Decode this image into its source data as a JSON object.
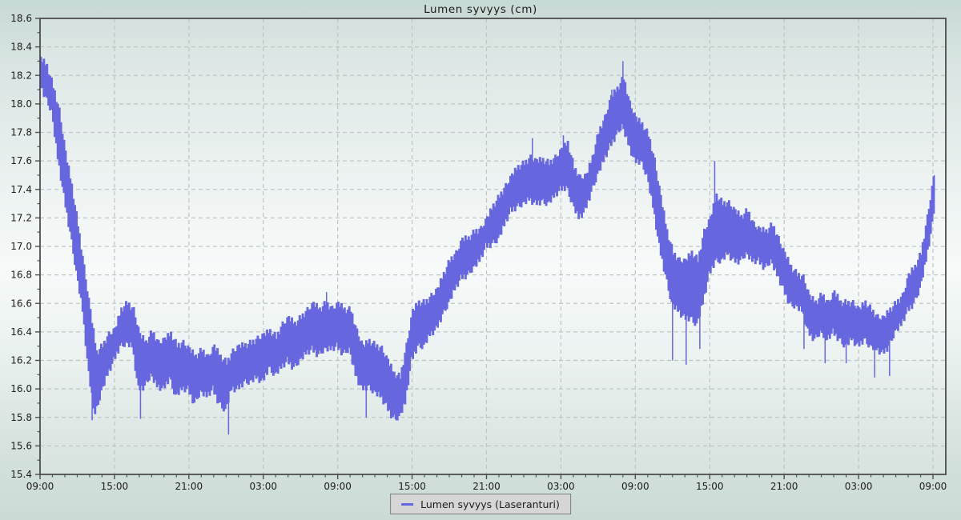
{
  "window": {
    "title": "Lumen syvyys (cm)"
  },
  "legend": {
    "label": "Lumen syvyys (Laseranturi)"
  },
  "colors": {
    "line": "#6667DF",
    "grid": "#bdc4c2",
    "axis": "#4d4d4d",
    "text": "#1b1b1b",
    "legend_bg": "#d6d6d6",
    "legend_border": "#7e7e7e",
    "bg_top": "#c7d9d5",
    "bg_mid": "#f6faf9",
    "bg_bottom": "#cadbd5"
  },
  "chart_data": {
    "type": "line",
    "title": "Lumen syvyys (cm)",
    "series": [
      {
        "name": "Lumen syvyys (Laseranturi)",
        "color": "#6667DF"
      }
    ],
    "x_axis": {
      "tick_labels": [
        "09:00",
        "15:00",
        "21:00",
        "03:00",
        "09:00",
        "15:00",
        "21:00",
        "03:00",
        "09:00",
        "15:00",
        "21:00",
        "03:00",
        "09:00"
      ],
      "tick_interval_hours": 6,
      "minor_tick_hours": 1,
      "total_hours": 72,
      "grid": true
    },
    "y_axis": {
      "min": 15.4,
      "max": 18.6,
      "tick_step": 0.2,
      "minor_tick_step": 0.1,
      "unit": "cm",
      "tick_labels": [
        "15.4",
        "15.6",
        "15.8",
        "16.0",
        "16.2",
        "16.4",
        "16.6",
        "16.8",
        "17.0",
        "17.2",
        "17.4",
        "17.6",
        "17.8",
        "18.0",
        "18.2",
        "18.4",
        "18.6"
      ],
      "grid": true
    },
    "legend_position": "bottom-center",
    "envelope_points_h_lo_hi": [
      [
        0,
        18.15,
        18.32
      ],
      [
        0.5,
        18.05,
        18.26
      ],
      [
        1,
        17.95,
        18.12
      ],
      [
        1.5,
        17.62,
        17.95
      ],
      [
        2,
        17.35,
        17.66
      ],
      [
        2.5,
        17.1,
        17.42
      ],
      [
        3,
        16.82,
        17.15
      ],
      [
        3.5,
        16.55,
        16.85
      ],
      [
        4,
        16.1,
        16.55
      ],
      [
        4.5,
        15.82,
        16.25
      ],
      [
        5,
        15.98,
        16.3
      ],
      [
        5.5,
        16.1,
        16.38
      ],
      [
        6,
        16.2,
        16.42
      ],
      [
        6.5,
        16.3,
        16.55
      ],
      [
        7,
        16.32,
        16.6
      ],
      [
        7.5,
        16.3,
        16.55
      ],
      [
        8,
        16,
        16.38
      ],
      [
        8.5,
        16.02,
        16.32
      ],
      [
        9,
        16.1,
        16.4
      ],
      [
        9.5,
        16.02,
        16.32
      ],
      [
        10,
        16,
        16.35
      ],
      [
        10.5,
        16.08,
        16.38
      ],
      [
        11,
        15.95,
        16.3
      ],
      [
        11.5,
        16,
        16.32
      ],
      [
        12,
        16,
        16.28
      ],
      [
        12.5,
        15.9,
        16.22
      ],
      [
        13,
        15.98,
        16.27
      ],
      [
        13.5,
        15.95,
        16.22
      ],
      [
        14,
        16,
        16.3
      ],
      [
        14.5,
        15.9,
        16.22
      ],
      [
        15,
        15.85,
        16.18
      ],
      [
        15.5,
        16,
        16.26
      ],
      [
        16,
        16,
        16.3
      ],
      [
        16.5,
        16.05,
        16.3
      ],
      [
        17,
        16.05,
        16.32
      ],
      [
        17.5,
        16.08,
        16.35
      ],
      [
        18,
        16.05,
        16.38
      ],
      [
        18.5,
        16.15,
        16.4
      ],
      [
        19,
        16.1,
        16.36
      ],
      [
        19.5,
        16.15,
        16.45
      ],
      [
        20,
        16.2,
        16.5
      ],
      [
        20.5,
        16.15,
        16.45
      ],
      [
        21,
        16.2,
        16.5
      ],
      [
        21.5,
        16.25,
        16.55
      ],
      [
        22,
        16.28,
        16.6
      ],
      [
        22.5,
        16.24,
        16.55
      ],
      [
        23,
        16.28,
        16.6
      ],
      [
        23.5,
        16.28,
        16.56
      ],
      [
        24,
        16.3,
        16.6
      ],
      [
        24.5,
        16.25,
        16.55
      ],
      [
        25,
        16.28,
        16.55
      ],
      [
        25.5,
        16.1,
        16.4
      ],
      [
        26,
        16,
        16.3
      ],
      [
        26.5,
        16.02,
        16.33
      ],
      [
        27,
        15.98,
        16.3
      ],
      [
        27.5,
        15.95,
        16.28
      ],
      [
        28,
        15.88,
        16.2
      ],
      [
        28.5,
        15.8,
        16.1
      ],
      [
        29,
        15.8,
        16.08
      ],
      [
        29.5,
        15.9,
        16.3
      ],
      [
        30,
        16.2,
        16.55
      ],
      [
        30.5,
        16.3,
        16.6
      ],
      [
        31,
        16.3,
        16.6
      ],
      [
        31.5,
        16.38,
        16.65
      ],
      [
        32,
        16.42,
        16.7
      ],
      [
        32.5,
        16.52,
        16.8
      ],
      [
        33,
        16.6,
        16.9
      ],
      [
        33.5,
        16.7,
        16.95
      ],
      [
        34,
        16.78,
        17.05
      ],
      [
        34.5,
        16.8,
        17.05
      ],
      [
        35,
        16.85,
        17.1
      ],
      [
        35.5,
        16.9,
        17.12
      ],
      [
        36,
        17,
        17.2
      ],
      [
        36.5,
        17.02,
        17.28
      ],
      [
        37,
        17.05,
        17.35
      ],
      [
        37.5,
        17.15,
        17.42
      ],
      [
        38,
        17.25,
        17.5
      ],
      [
        38.5,
        17.28,
        17.55
      ],
      [
        39,
        17.3,
        17.58
      ],
      [
        39.5,
        17.33,
        17.62
      ],
      [
        40,
        17.3,
        17.6
      ],
      [
        40.5,
        17.32,
        17.6
      ],
      [
        41,
        17.3,
        17.58
      ],
      [
        41.5,
        17.35,
        17.62
      ],
      [
        42,
        17.4,
        17.68
      ],
      [
        42.5,
        17.42,
        17.72
      ],
      [
        43,
        17.3,
        17.55
      ],
      [
        43.5,
        17.2,
        17.48
      ],
      [
        44,
        17.25,
        17.5
      ],
      [
        44.5,
        17.38,
        17.62
      ],
      [
        45,
        17.5,
        17.8
      ],
      [
        45.5,
        17.6,
        17.9
      ],
      [
        46,
        17.7,
        18.05
      ],
      [
        46.5,
        17.78,
        18.1
      ],
      [
        47,
        17.85,
        18.18
      ],
      [
        47.5,
        17.72,
        18
      ],
      [
        48,
        17.6,
        17.9
      ],
      [
        48.5,
        17.6,
        17.85
      ],
      [
        49,
        17.5,
        17.78
      ],
      [
        49.5,
        17.28,
        17.6
      ],
      [
        50,
        17,
        17.35
      ],
      [
        50.5,
        16.8,
        17.1
      ],
      [
        51,
        16.6,
        16.95
      ],
      [
        51.5,
        16.55,
        16.9
      ],
      [
        52,
        16.5,
        16.9
      ],
      [
        52.5,
        16.5,
        16.95
      ],
      [
        53,
        16.45,
        16.9
      ],
      [
        53.5,
        16.6,
        17.1
      ],
      [
        54,
        16.8,
        17.2
      ],
      [
        54.5,
        16.9,
        17.35
      ],
      [
        55,
        16.9,
        17.3
      ],
      [
        55.5,
        16.95,
        17.3
      ],
      [
        56,
        16.9,
        17.25
      ],
      [
        56.5,
        16.9,
        17.2
      ],
      [
        57,
        16.95,
        17.25
      ],
      [
        57.5,
        16.9,
        17.15
      ],
      [
        58,
        16.9,
        17.12
      ],
      [
        58.5,
        16.85,
        17.1
      ],
      [
        59,
        16.9,
        17.15
      ],
      [
        59.5,
        16.8,
        17.05
      ],
      [
        60,
        16.7,
        16.95
      ],
      [
        60.5,
        16.6,
        16.85
      ],
      [
        61,
        16.58,
        16.8
      ],
      [
        61.5,
        16.55,
        16.78
      ],
      [
        62,
        16.4,
        16.65
      ],
      [
        62.5,
        16.35,
        16.6
      ],
      [
        63,
        16.4,
        16.66
      ],
      [
        63.5,
        16.35,
        16.6
      ],
      [
        64,
        16.4,
        16.68
      ],
      [
        64.5,
        16.35,
        16.6
      ],
      [
        65,
        16.3,
        16.6
      ],
      [
        65.5,
        16.35,
        16.6
      ],
      [
        66,
        16.3,
        16.56
      ],
      [
        66.5,
        16.35,
        16.6
      ],
      [
        67,
        16.3,
        16.55
      ],
      [
        67.5,
        16.28,
        16.5
      ],
      [
        68,
        16.25,
        16.5
      ],
      [
        68.5,
        16.3,
        16.55
      ],
      [
        69,
        16.4,
        16.6
      ],
      [
        69.5,
        16.45,
        16.65
      ],
      [
        70,
        16.55,
        16.8
      ],
      [
        70.5,
        16.6,
        16.85
      ],
      [
        71,
        16.7,
        16.95
      ],
      [
        71.5,
        16.9,
        17.2
      ],
      [
        72,
        17.15,
        17.48
      ],
      [
        72.2,
        17.3,
        17.5
      ]
    ],
    "spikes_h_v": [
      [
        4.2,
        15.78
      ],
      [
        8.1,
        15.79
      ],
      [
        15.2,
        15.68
      ],
      [
        23.1,
        16.68
      ],
      [
        26.3,
        15.8
      ],
      [
        28.7,
        15.78
      ],
      [
        39.7,
        17.76
      ],
      [
        42.2,
        17.78
      ],
      [
        46.1,
        18.1
      ],
      [
        47,
        18.3
      ],
      [
        51,
        16.2
      ],
      [
        52.1,
        16.17
      ],
      [
        53.2,
        16.28
      ],
      [
        54.4,
        17.6
      ],
      [
        61.6,
        16.28
      ],
      [
        63.3,
        16.18
      ],
      [
        65,
        16.18
      ],
      [
        67.3,
        16.08
      ],
      [
        68.5,
        16.09
      ],
      [
        72.1,
        17.5
      ]
    ]
  }
}
